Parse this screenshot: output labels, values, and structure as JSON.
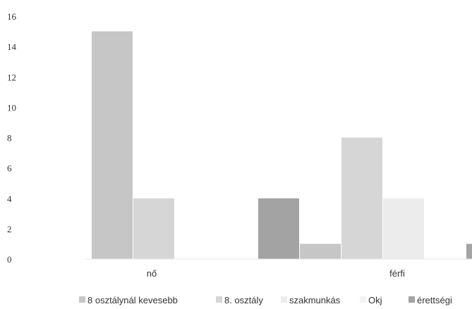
{
  "chart_data": {
    "type": "bar",
    "categories": [
      "nő",
      "férfi"
    ],
    "series": [
      {
        "name": "8 osztálynál kevesebb",
        "values": [
          15,
          1
        ],
        "color": "#c6c6c6"
      },
      {
        "name": "8. osztály",
        "values": [
          4,
          8
        ],
        "color": "#d6d6d6"
      },
      {
        "name": "szakmunkás",
        "values": [
          0,
          4
        ],
        "color": "#ececec"
      },
      {
        "name": "Okj",
        "values": [
          0,
          0
        ],
        "color": "#f3f3f3"
      },
      {
        "name": "érettségi",
        "values": [
          4,
          1
        ],
        "color": "#a3a3a3"
      }
    ],
    "yticks": [
      0,
      2,
      4,
      6,
      8,
      10,
      12,
      14,
      16
    ],
    "ylim": [
      0,
      16
    ],
    "legend": "bottom",
    "grid": false
  }
}
